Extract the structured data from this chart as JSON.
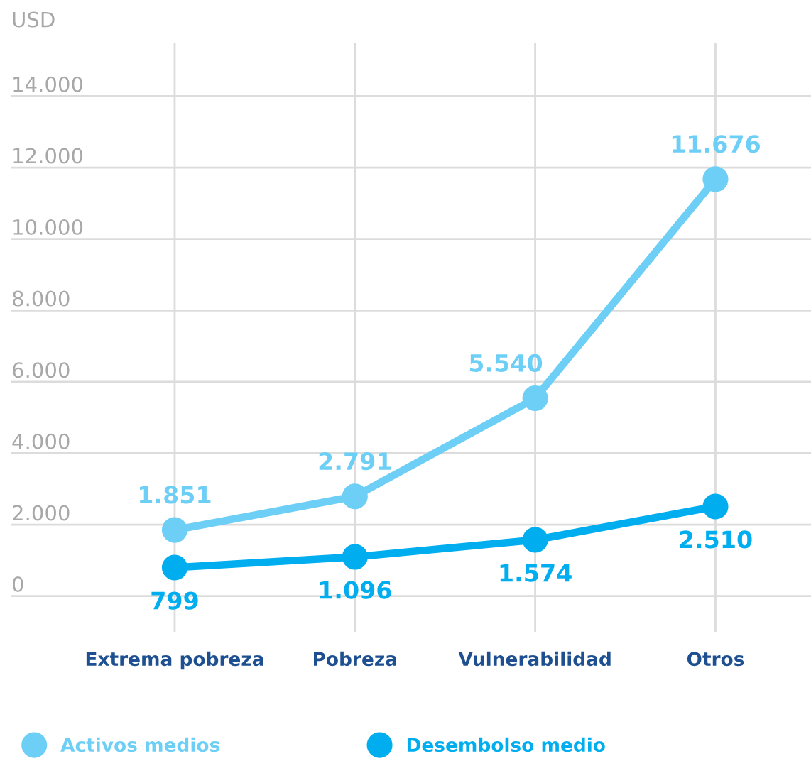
{
  "chart_data": {
    "type": "line",
    "ylabel": "USD",
    "categories": [
      "Extrema pobreza",
      "Pobreza",
      "Vulnerabilidad",
      "Otros"
    ],
    "series": [
      {
        "name": "Activos medios",
        "color": "#6dcff6",
        "values": [
          1851,
          2791,
          5540,
          11676
        ],
        "value_labels": [
          "1.851",
          "2.791",
          "5.540",
          "11.676"
        ]
      },
      {
        "name": "Desembolso medio",
        "color": "#00aeef",
        "values": [
          799,
          1096,
          1574,
          2510
        ],
        "value_labels": [
          "799",
          "1.096",
          "1.574",
          "2.510"
        ]
      }
    ],
    "ylim": [
      -1000,
      15500
    ],
    "yticks": [
      0,
      {
        "value": 2000,
        "label": "2.000"
      },
      {
        "value": 4000,
        "label": "4.000"
      },
      {
        "value": 6000,
        "label": "6.000"
      },
      {
        "value": 8000,
        "label": "8.000"
      },
      {
        "value": 10000,
        "label": "10.000"
      },
      {
        "value": 12000,
        "label": "12.000"
      },
      {
        "value": 14000,
        "label": "14.000"
      }
    ],
    "grid": true,
    "legend": "bottom",
    "marker": "circle",
    "line_style": "solid"
  }
}
